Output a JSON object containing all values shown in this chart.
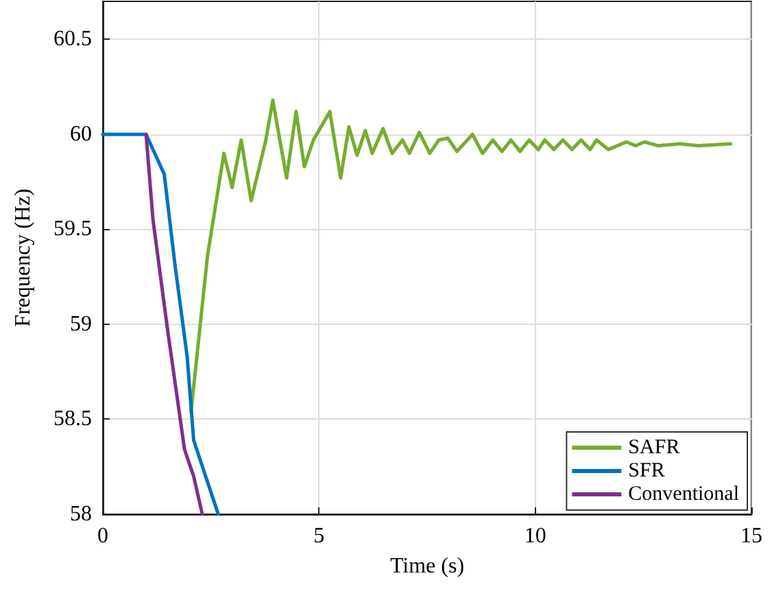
{
  "chart_data": {
    "type": "line",
    "xlabel": "Time (s)",
    "ylabel": "Frequency (Hz)",
    "xlim": [
      0,
      15
    ],
    "xticks": [
      0,
      5,
      10,
      15
    ],
    "ylim": [
      58,
      60.7
    ],
    "yticks": [
      58,
      58.5,
      59,
      59.5,
      60,
      60.5
    ],
    "grid": true,
    "legend": "bottom right",
    "marker": "none",
    "line_style": "solid",
    "series": [
      {
        "name": "SAFR",
        "color": "#77ac30",
        "x": [
          2.04,
          2.42,
          2.8,
          2.99,
          3.2,
          3.43,
          3.77,
          3.93,
          4.25,
          4.47,
          4.66,
          4.87,
          5.25,
          5.5,
          5.69,
          5.88,
          6.07,
          6.23,
          6.48,
          6.69,
          6.93,
          7.09,
          7.32,
          7.56,
          7.77,
          7.98,
          8.19,
          8.55,
          8.78,
          9.02,
          9.23,
          9.44,
          9.65,
          9.86,
          10.07,
          10.22,
          10.43,
          10.64,
          10.85,
          11.06,
          11.27,
          11.42,
          11.69,
          12.11,
          12.32,
          12.53,
          12.84,
          13.36,
          13.78,
          14.52
        ],
        "values": [
          58.54,
          59.36,
          59.9,
          59.72,
          59.97,
          59.65,
          59.97,
          60.18,
          59.77,
          60.12,
          59.83,
          59.97,
          60.12,
          59.77,
          60.04,
          59.89,
          60.02,
          59.9,
          60.03,
          59.9,
          59.97,
          59.9,
          60.01,
          59.9,
          59.97,
          59.98,
          59.91,
          60.0,
          59.9,
          59.97,
          59.91,
          59.97,
          59.91,
          59.97,
          59.92,
          59.97,
          59.92,
          59.97,
          59.92,
          59.97,
          59.92,
          59.97,
          59.92,
          59.96,
          59.94,
          59.96,
          59.94,
          59.95,
          59.94,
          59.95
        ]
      },
      {
        "name": "SFR",
        "color": "#0072bd",
        "x": [
          0,
          1,
          1.42,
          1.67,
          1.95,
          2.1,
          2.42,
          2.67
        ],
        "values": [
          60,
          60,
          59.79,
          59.31,
          58.83,
          58.39,
          58.17,
          58
        ]
      },
      {
        "name": "Conventional",
        "color": "#7e2f8e",
        "x": [
          1,
          1.16,
          1.51,
          1.89,
          2.1,
          2.3
        ],
        "values": [
          60,
          59.55,
          58.95,
          58.34,
          58.2,
          58
        ]
      }
    ]
  }
}
